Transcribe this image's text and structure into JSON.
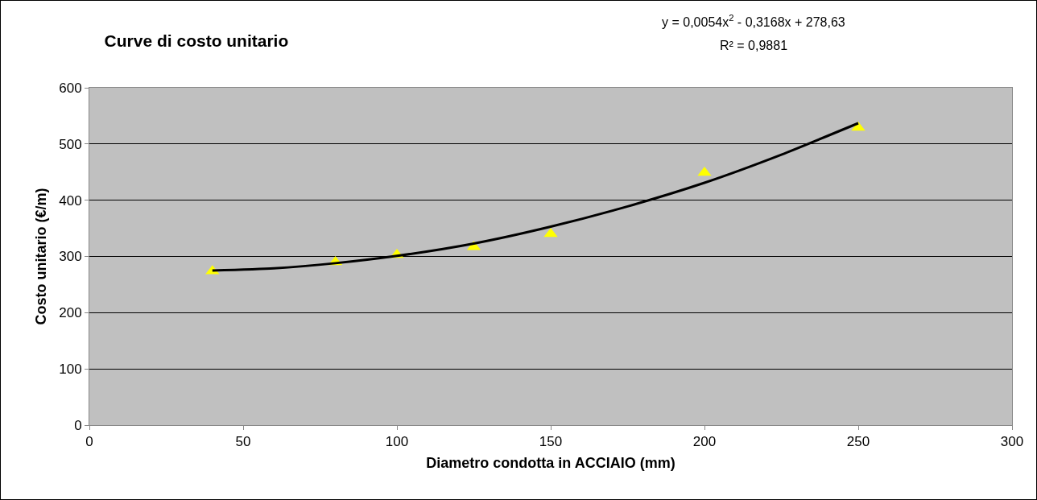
{
  "chart_data": {
    "type": "scatter",
    "title": "Curve di costo unitario",
    "xlabel": "Diametro condotta in ACCIAIO (mm)",
    "ylabel": "Costo unitario (€/m)",
    "annotations": [
      "y = 0,0054x$^{2}$ - 0,3168x + 278,63",
      "R² = 0,9881"
    ],
    "series": [
      {
        "color": "#ffff00",
        "x": [
          40,
          80,
          100,
          125,
          150,
          200,
          250
        ],
        "values": [
          274,
          290,
          303,
          317,
          340,
          449,
          529
        ]
      },
      {
        "type": "line",
        "marker": "none",
        "color": "#000000",
        "x": [
          40,
          60,
          80,
          100,
          125,
          150,
          175,
          200,
          225,
          250
        ],
        "values": [
          275,
          279,
          288,
          301,
          323,
          353,
          389,
          431,
          481,
          537
        ]
      }
    ],
    "xlim": [
      0,
      300
    ],
    "xticks": [
      0,
      50,
      100,
      150,
      200,
      250,
      300
    ],
    "ylim": [
      0,
      600
    ],
    "yticks": [
      0,
      100,
      200,
      300,
      400,
      500,
      600
    ],
    "grid": "y",
    "legend": false,
    "marker": "triangle",
    "line_style": "solid"
  }
}
